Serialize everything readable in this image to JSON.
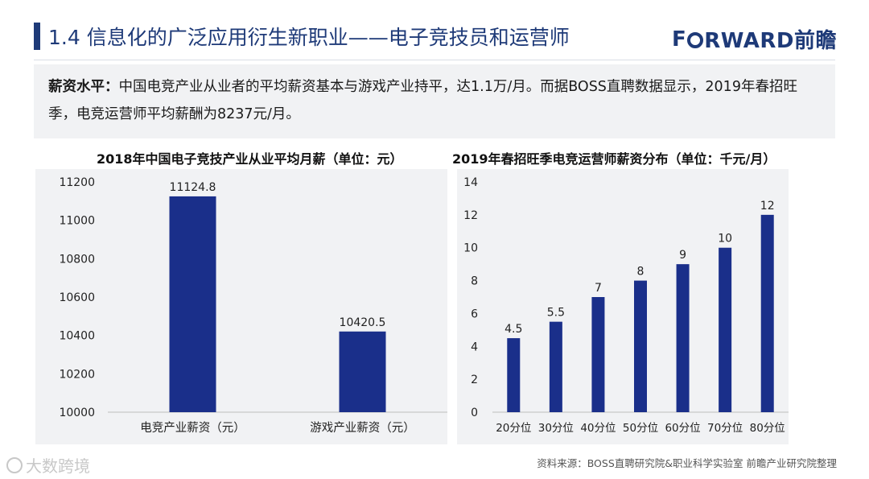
{
  "header": {
    "title": "1.4 信息化的广泛应用衍生新职业——电子竞技员和运营师",
    "logo_pre": "F",
    "logo_post": "RWARD前瞻"
  },
  "summary": {
    "label": "薪资水平：",
    "text": "中国电竞产业从业者的平均薪资基本与游戏产业持平，达1.1万/月。而据BOSS直聘数据显示，2019年春招旺季，电竞运营师平均薪酬为8237元/月。"
  },
  "chart_data": [
    {
      "type": "bar",
      "title": "2018年中国电子竞技产业从业平均月薪（单位：元）",
      "categories": [
        "电竞产业薪资（元）",
        "游戏产业薪资（元）"
      ],
      "values": [
        11124.8,
        10420.5
      ],
      "value_labels": [
        "11124.8",
        "10420.5"
      ],
      "ylim": [
        10000,
        11200
      ],
      "yticks": [
        10000,
        10200,
        10400,
        10600,
        10800,
        11000,
        11200
      ],
      "grid": false,
      "legend": "none",
      "color": "#1a2f8a"
    },
    {
      "type": "bar",
      "title": "2019年春招旺季电竞运营师薪资分布（单位：千元/月）",
      "categories": [
        "20分位",
        "30分位",
        "40分位",
        "50分位",
        "60分位",
        "70分位",
        "80分位"
      ],
      "values": [
        4.5,
        5.5,
        7,
        8,
        9,
        10,
        12
      ],
      "value_labels": [
        "4.5",
        "5.5",
        "7",
        "8",
        "9",
        "10",
        "12"
      ],
      "ylim": [
        0,
        14
      ],
      "yticks": [
        0,
        2,
        4,
        6,
        8,
        10,
        12,
        14
      ],
      "grid": false,
      "legend": "none",
      "color": "#1a2f8a"
    }
  ],
  "footer": {
    "source": "资料来源：BOSS直聘研究院&职业科学实验室 前瞻产业研究院整理",
    "watermark": "大数跨境"
  }
}
